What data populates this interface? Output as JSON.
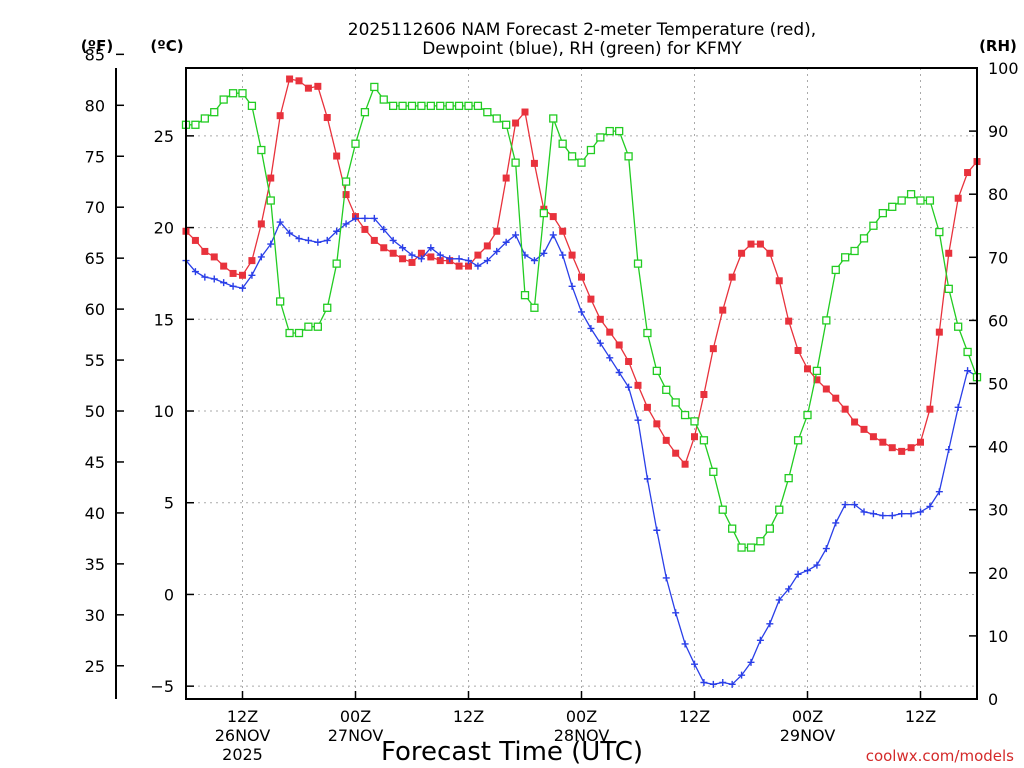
{
  "chart_data": {
    "type": "line",
    "title_line1": "2025112606 NAM Forecast 2-meter Temperature (red),",
    "title_line2": "Dewpoint (blue), RH (green) for KFMY",
    "xlabel": "Forecast Time (UTC)",
    "credit": "coolwx.com/models",
    "units": {
      "fahrenheit": "(ºF)",
      "celsius": "(ºC)",
      "rh": "(RH)"
    },
    "x_range_hours": [
      0,
      84
    ],
    "x_ticks": [
      {
        "hour": 6,
        "lines": [
          "12Z",
          "26NOV",
          "2025"
        ]
      },
      {
        "hour": 18,
        "lines": [
          "00Z",
          "27NOV"
        ]
      },
      {
        "hour": 30,
        "lines": [
          "12Z"
        ]
      },
      {
        "hour": 42,
        "lines": [
          "00Z",
          "28NOV"
        ]
      },
      {
        "hour": 54,
        "lines": [
          "12Z"
        ]
      },
      {
        "hour": 66,
        "lines": [
          "00Z",
          "29NOV"
        ]
      },
      {
        "hour": 78,
        "lines": [
          "12Z"
        ]
      }
    ],
    "celsius_axis": {
      "range": [
        -5.7,
        28.7
      ],
      "ticks": [
        -5,
        0,
        5,
        10,
        15,
        20,
        25
      ]
    },
    "fahrenheit_axis": {
      "ticks": [
        25,
        30,
        35,
        40,
        45,
        50,
        55,
        60,
        65,
        70,
        75,
        80,
        85
      ]
    },
    "rh_axis": {
      "range": [
        0,
        100
      ],
      "ticks": [
        0,
        10,
        20,
        30,
        40,
        50,
        60,
        70,
        80,
        90,
        100
      ]
    },
    "grid": true,
    "x_hours": [
      0,
      1,
      2,
      3,
      4,
      5,
      6,
      7,
      8,
      9,
      10,
      11,
      12,
      13,
      14,
      15,
      16,
      17,
      18,
      19,
      20,
      21,
      22,
      23,
      24,
      25,
      26,
      27,
      28,
      29,
      30,
      31,
      32,
      33,
      34,
      35,
      36,
      37,
      38,
      39,
      40,
      41,
      42,
      43,
      44,
      45,
      46,
      47,
      48,
      49,
      50,
      51,
      52,
      53,
      54,
      55,
      56,
      57,
      58,
      59,
      60,
      61,
      62,
      63,
      64,
      65,
      66,
      67,
      68,
      69,
      70,
      71,
      72,
      73,
      74,
      75,
      76,
      77,
      78,
      79,
      80,
      81,
      82,
      83,
      84
    ],
    "series": [
      {
        "name": "Temperature",
        "color": "#e8323c",
        "marker": "filled-square",
        "axis": "celsius",
        "values": [
          19.8,
          19.3,
          18.7,
          18.4,
          17.9,
          17.5,
          17.4,
          18.2,
          20.2,
          22.7,
          26.1,
          28.1,
          28.0,
          27.6,
          27.7,
          26.0,
          23.9,
          21.8,
          20.6,
          19.9,
          19.3,
          18.9,
          18.6,
          18.3,
          18.1,
          18.6,
          18.4,
          18.2,
          18.2,
          17.9,
          17.9,
          18.5,
          19.0,
          19.8,
          22.7,
          25.7,
          26.3,
          23.5,
          21.0,
          20.6,
          19.8,
          18.5,
          17.3,
          16.1,
          15.0,
          14.3,
          13.6,
          12.7,
          11.4,
          10.2,
          9.3,
          8.4,
          7.7,
          7.1,
          8.6,
          10.9,
          13.4,
          15.5,
          17.3,
          18.6,
          19.1,
          19.1,
          18.6,
          17.1,
          14.9,
          13.3,
          12.3,
          11.7,
          11.2,
          10.7,
          10.1,
          9.4,
          9.0,
          8.6,
          8.3,
          8.0,
          7.8,
          8.0,
          8.3,
          10.1,
          14.3,
          18.6,
          21.6,
          23.0,
          23.6
        ]
      },
      {
        "name": "Dewpoint",
        "color": "#2a3fe8",
        "marker": "plus",
        "axis": "celsius",
        "values": [
          18.2,
          17.6,
          17.3,
          17.2,
          17.0,
          16.8,
          16.7,
          17.4,
          18.4,
          19.1,
          20.3,
          19.7,
          19.4,
          19.3,
          19.2,
          19.3,
          19.8,
          20.2,
          20.5,
          20.5,
          20.5,
          19.9,
          19.3,
          18.9,
          18.5,
          18.3,
          18.9,
          18.5,
          18.3,
          18.3,
          18.2,
          17.9,
          18.2,
          18.7,
          19.2,
          19.6,
          18.5,
          18.2,
          18.6,
          19.6,
          18.5,
          16.8,
          15.4,
          14.5,
          13.7,
          12.9,
          12.1,
          11.3,
          9.5,
          6.3,
          3.5,
          0.9,
          -1.0,
          -2.7,
          -3.8,
          -4.8,
          -4.9,
          -4.8,
          -4.9,
          -4.4,
          -3.7,
          -2.5,
          -1.6,
          -0.3,
          0.3,
          1.1,
          1.3,
          1.6,
          2.5,
          3.9,
          4.9,
          4.9,
          4.5,
          4.4,
          4.3,
          4.3,
          4.4,
          4.4,
          4.5,
          4.8,
          5.6,
          7.9,
          10.2,
          12.2,
          11.9
        ]
      },
      {
        "name": "RH",
        "color": "#22cc22",
        "marker": "open-square",
        "axis": "rh",
        "values": [
          91,
          91,
          92,
          93,
          95,
          96,
          96,
          94,
          87,
          79,
          63,
          58,
          58,
          59,
          59,
          62,
          69,
          82,
          88,
          93,
          97,
          95,
          94,
          94,
          94,
          94,
          94,
          94,
          94,
          94,
          94,
          94,
          93,
          92,
          91,
          85,
          64,
          62,
          77,
          92,
          88,
          86,
          85,
          87,
          89,
          90,
          90,
          86,
          69,
          58,
          52,
          49,
          47,
          45,
          44,
          41,
          36,
          30,
          27,
          24,
          24,
          25,
          27,
          30,
          35,
          41,
          45,
          52,
          60,
          68,
          70,
          71,
          73,
          75,
          77,
          78,
          79,
          80,
          79,
          79,
          74,
          65,
          59,
          55,
          51
        ]
      }
    ]
  }
}
